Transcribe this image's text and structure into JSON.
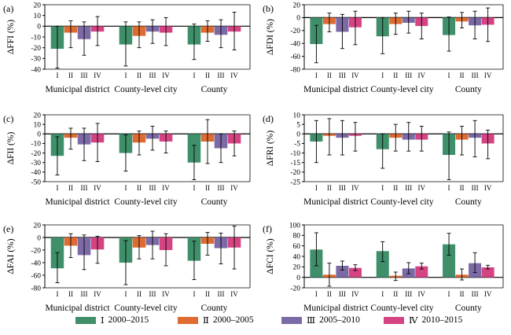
{
  "categories": [
    "Municipal district",
    "County-level city",
    "County"
  ],
  "roman_numerals": [
    "I",
    "II",
    "III",
    "IV"
  ],
  "series_colors": [
    "#3f8f6a",
    "#de6b31",
    "#7b6aa6",
    "#d44483"
  ],
  "legend": [
    {
      "roman": "Ⅰ",
      "period": "2000–2015"
    },
    {
      "roman": "Ⅱ",
      "period": "2000–2005"
    },
    {
      "roman": "Ⅲ",
      "period": "2005–2010"
    },
    {
      "roman": "Ⅳ",
      "period": "2010–2015"
    }
  ],
  "chart_data": [
    {
      "panel": "(a)",
      "type": "bar",
      "ylabel": "ΔFFI (%)",
      "ylim": [
        -40,
        20
      ],
      "yticks": [
        -40,
        -30,
        -20,
        -10,
        0,
        10,
        20
      ],
      "categories": [
        "Municipal district",
        "County-level city",
        "County"
      ],
      "series": [
        {
          "values": [
            -21,
            -17,
            -17
          ],
          "errors": [
            [
              -39,
              0
            ],
            [
              -37,
              4
            ],
            [
              -31,
              2
            ]
          ]
        },
        {
          "values": [
            -6,
            -9,
            -6
          ],
          "errors": [
            [
              -20,
              5
            ],
            [
              -20,
              4
            ],
            [
              -14,
              5
            ]
          ]
        },
        {
          "values": [
            -12,
            -5,
            -8
          ],
          "errors": [
            [
              -27,
              4
            ],
            [
              -16,
              6
            ],
            [
              -20,
              6
            ]
          ]
        },
        {
          "values": [
            -5,
            -6,
            -5
          ],
          "errors": [
            [
              -18,
              9
            ],
            [
              -18,
              8
            ],
            [
              -22,
              13
            ]
          ]
        }
      ]
    },
    {
      "panel": "(b)",
      "type": "bar",
      "ylabel": "ΔFDI (%)",
      "ylim": [
        -80,
        20
      ],
      "yticks": [
        -80,
        -60,
        -40,
        -20,
        0,
        20
      ],
      "categories": [
        "Municipal district",
        "County-level city",
        "County"
      ],
      "series": [
        {
          "values": [
            -41,
            -29,
            -27
          ],
          "errors": [
            [
              -70,
              -12
            ],
            [
              -56,
              0
            ],
            [
              -52,
              1
            ]
          ]
        },
        {
          "values": [
            -10,
            -10,
            -6
          ],
          "errors": [
            [
              -22,
              7
            ],
            [
              -26,
              7
            ],
            [
              -16,
              8
            ]
          ]
        },
        {
          "values": [
            -22,
            -8,
            -12
          ],
          "errors": [
            [
              -48,
              5
            ],
            [
              -24,
              10
            ],
            [
              -33,
              10
            ]
          ]
        },
        {
          "values": [
            -15,
            -13,
            -11
          ],
          "errors": [
            [
              -42,
              10
            ],
            [
              -33,
              7
            ],
            [
              -37,
              15
            ]
          ]
        }
      ]
    },
    {
      "panel": "(c)",
      "type": "bar",
      "ylabel": "ΔFII (%)",
      "ylim": [
        -50,
        20
      ],
      "yticks": [
        -50,
        -40,
        -30,
        -20,
        -10,
        0,
        10,
        20
      ],
      "categories": [
        "Municipal district",
        "County-level city",
        "County"
      ],
      "series": [
        {
          "values": [
            -23,
            -20,
            -30
          ],
          "errors": [
            [
              -43,
              -3
            ],
            [
              -39,
              -1
            ],
            [
              -48,
              -12
            ]
          ]
        },
        {
          "values": [
            -4,
            -9,
            -8
          ],
          "errors": [
            [
              -16,
              6
            ],
            [
              -22,
              3
            ],
            [
              -31,
              15
            ]
          ]
        },
        {
          "values": [
            -11,
            -5,
            -15
          ],
          "errors": [
            [
              -28,
              6
            ],
            [
              -17,
              8
            ],
            [
              -30,
              0
            ]
          ]
        },
        {
          "values": [
            -9,
            -8,
            -10
          ],
          "errors": [
            [
              -29,
              11
            ],
            [
              -20,
              3
            ],
            [
              -23,
              3
            ]
          ]
        }
      ]
    },
    {
      "panel": "(d)",
      "type": "bar",
      "ylabel": "ΔFRI (%)",
      "ylim": [
        -25,
        10
      ],
      "yticks": [
        -25,
        -20,
        -15,
        -10,
        -5,
        0,
        5,
        10
      ],
      "categories": [
        "Municipal district",
        "County-level city",
        "County"
      ],
      "series": [
        {
          "values": [
            -4,
            -8,
            -11
          ],
          "errors": [
            [
              -15,
              7
            ],
            [
              -18,
              0
            ],
            [
              -24,
              1
            ]
          ]
        },
        {
          "values": [
            -1,
            -2,
            -3
          ],
          "errors": [
            [
              -11,
              8
            ],
            [
              -9,
              5
            ],
            [
              -11,
              4
            ]
          ]
        },
        {
          "values": [
            -2,
            -3,
            -2
          ],
          "errors": [
            [
              -11,
              7
            ],
            [
              -9,
              6
            ],
            [
              -12,
              7
            ]
          ]
        },
        {
          "values": [
            -1,
            -3,
            -5
          ],
          "errors": [
            [
              -9,
              6
            ],
            [
              -9,
              4
            ],
            [
              -13,
              2
            ]
          ]
        }
      ]
    },
    {
      "panel": "(e)",
      "type": "bar",
      "ylabel": "ΔFAI (%)",
      "ylim": [
        -80,
        20
      ],
      "yticks": [
        -80,
        -60,
        -40,
        -20,
        0,
        20
      ],
      "categories": [
        "Municipal district",
        "County-level city",
        "County"
      ],
      "series": [
        {
          "values": [
            -49,
            -40,
            -37
          ],
          "errors": [
            [
              -72,
              -24
            ],
            [
              -75,
              -5
            ],
            [
              -67,
              -6
            ]
          ]
        },
        {
          "values": [
            -13,
            -16,
            -10
          ],
          "errors": [
            [
              -32,
              6
            ],
            [
              -34,
              3
            ],
            [
              -28,
              8
            ]
          ]
        },
        {
          "values": [
            -28,
            -12,
            -17
          ],
          "errors": [
            [
              -51,
              4
            ],
            [
              -34,
              10
            ],
            [
              -42,
              7
            ]
          ]
        },
        {
          "values": [
            -19,
            -20,
            -16
          ],
          "errors": [
            [
              -41,
              2
            ],
            [
              -45,
              6
            ],
            [
              -50,
              18
            ]
          ]
        }
      ]
    },
    {
      "panel": "(f)",
      "type": "bar",
      "ylabel": "ΔFCI (%)",
      "ylim": [
        -20,
        100
      ],
      "yticks": [
        -20,
        0,
        20,
        40,
        60,
        80,
        100
      ],
      "categories": [
        "Municipal district",
        "County-level city",
        "County"
      ],
      "series": [
        {
          "values": [
            53,
            50,
            63
          ],
          "errors": [
            [
              22,
              85
            ],
            [
              30,
              68
            ],
            [
              42,
              84
            ]
          ]
        },
        {
          "values": [
            5,
            3,
            5
          ],
          "errors": [
            [
              -17,
              27
            ],
            [
              -6,
              10
            ],
            [
              -5,
              16
            ]
          ]
        },
        {
          "values": [
            22,
            17,
            27
          ],
          "errors": [
            [
              14,
              31
            ],
            [
              7,
              28
            ],
            [
              9,
              47
            ]
          ]
        },
        {
          "values": [
            18,
            21,
            19
          ],
          "errors": [
            [
              13,
              24
            ],
            [
              16,
              27
            ],
            [
              16,
              23
            ]
          ]
        }
      ]
    }
  ]
}
